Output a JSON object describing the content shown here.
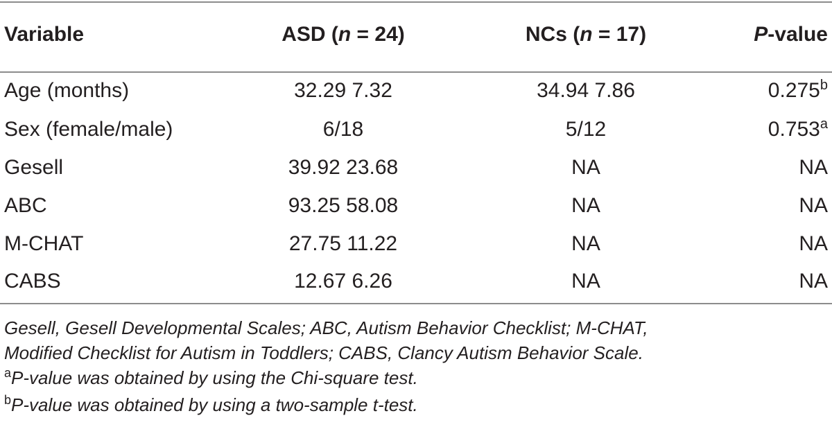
{
  "table": {
    "headers": {
      "variable": "Variable",
      "asd_pre": "ASD (",
      "asd_n": "n",
      "asd_post": " = 24)",
      "nc_pre": "NCs (",
      "nc_n": "n",
      "nc_post": " = 17)",
      "p_letter": "P",
      "p_rest": "-value"
    },
    "rows": [
      {
        "variable": "Age (months)",
        "asd": "32.29  7.32",
        "nc": "34.94  7.86",
        "p": "0.275",
        "p_sup": "b"
      },
      {
        "variable": "Sex (female/male)",
        "asd": "6/18",
        "nc": "5/12",
        "p": "0.753",
        "p_sup": "a"
      },
      {
        "variable": "Gesell",
        "asd": "39.92  23.68",
        "nc": "NA",
        "p": "NA",
        "p_sup": ""
      },
      {
        "variable": "ABC",
        "asd": "93.25  58.08",
        "nc": "NA",
        "p": "NA",
        "p_sup": ""
      },
      {
        "variable": "M-CHAT",
        "asd": "27.75  11.22",
        "nc": "NA",
        "p": "NA",
        "p_sup": ""
      },
      {
        "variable": "CABS",
        "asd": "12.67  6.26",
        "nc": "NA",
        "p": "NA",
        "p_sup": ""
      }
    ]
  },
  "notes": {
    "line1": "Gesell, Gesell Developmental Scales; ABC, Autism Behavior Checklist; M-CHAT,",
    "line2": "Modified Checklist for Autism in Toddlers; CABS, Clancy Autism Behavior Scale.",
    "a_mark": "a",
    "a_text": "P-value was obtained by using the Chi-square test.",
    "b_mark": "b",
    "b_text": "P-value was obtained by using a two-sample t-test."
  }
}
